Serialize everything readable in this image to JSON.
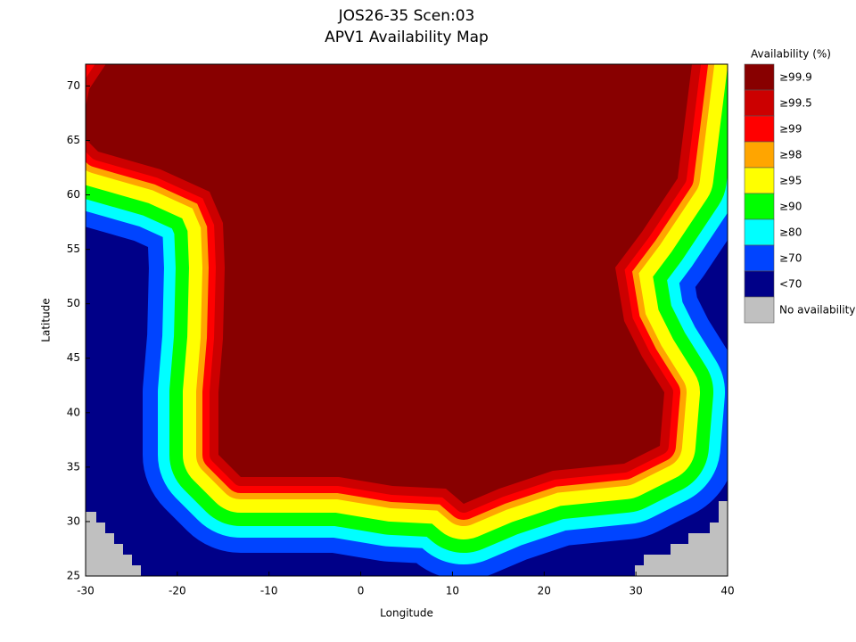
{
  "chart_data": {
    "type": "map",
    "title": "JOS26-35 Scen:03",
    "subtitle": "APV1 Availability Map",
    "xlabel": "Longitude",
    "ylabel": "Latitude",
    "xlim": [
      -30,
      40
    ],
    "ylim": [
      25,
      72
    ],
    "xticks": [
      -30,
      -20,
      -10,
      0,
      10,
      20,
      30,
      40
    ],
    "yticks": [
      25,
      30,
      35,
      40,
      45,
      50,
      55,
      60,
      65,
      70
    ],
    "legend_title": "Availability (%)",
    "legend": [
      {
        "label": "≥99.9",
        "color": "#880000"
      },
      {
        "label": "≥99.5",
        "color": "#cc0000"
      },
      {
        "label": "≥99",
        "color": "#ff0000"
      },
      {
        "label": "≥98",
        "color": "#ffa500"
      },
      {
        "label": "≥95",
        "color": "#ffff00"
      },
      {
        "label": "≥90",
        "color": "#00ff00"
      },
      {
        "label": "≥80",
        "color": "#00ffff"
      },
      {
        "label": "≥70",
        "color": "#0044ff"
      },
      {
        "label": "<70",
        "color": "#000088"
      },
      {
        "label": "No availability",
        "color": "#c0c0c0"
      }
    ]
  }
}
